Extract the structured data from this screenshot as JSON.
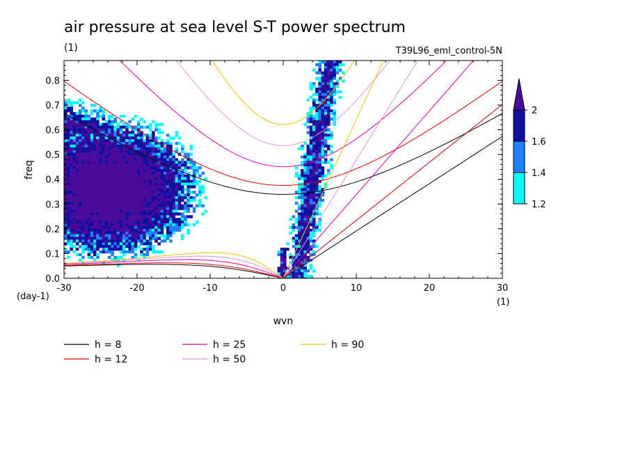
{
  "chart_data": {
    "type": "heatmap",
    "title": "air pressure at sea level S-T power spectrum",
    "subtitle_left": "(1)",
    "subtitle_right": "T39L96_eml_control-5N",
    "xlabel": "wvn",
    "ylabel": "freq",
    "x_unit": "(1)",
    "y_unit": "(day-1)",
    "xlim": [
      -30,
      30
    ],
    "ylim": [
      0,
      0.88
    ],
    "xticks": [
      "-30",
      "-20",
      "-10",
      "0",
      "10",
      "20",
      "30"
    ],
    "xtick_values": [
      -30,
      -20,
      -10,
      0,
      10,
      20,
      30
    ],
    "yticks": [
      "0.0",
      "0.1",
      "0.2",
      "0.3",
      "0.4",
      "0.5",
      "0.6",
      "0.7",
      "0.8"
    ],
    "ytick_values": [
      0,
      0.1,
      0.2,
      0.3,
      0.4,
      0.5,
      0.6,
      0.7,
      0.8
    ],
    "grid": false,
    "colorbar": {
      "levels": [
        "1.2",
        "1.4",
        "1.6",
        "2"
      ],
      "level_values": [
        1.2,
        1.4,
        1.6,
        2
      ],
      "colors": [
        "#00ffff",
        "#1f7fff",
        "#1010a0",
        "#4b0c9c"
      ],
      "extends": "max"
    },
    "shaded_regions": [
      {
        "name": "westward-low-wavenumber",
        "x_range": [
          -30,
          -13
        ],
        "y_range": [
          0.15,
          0.62
        ],
        "level": 2
      },
      {
        "name": "kelvin-band",
        "x_range": [
          1,
          9
        ],
        "y_range": [
          0.02,
          0.88
        ],
        "level": 1.6
      },
      {
        "name": "zero-wvn-column",
        "x_range": [
          -1,
          1
        ],
        "y_range": [
          0,
          0.2
        ],
        "level": 2
      }
    ],
    "series": [
      {
        "name": "h =  8",
        "color": "#000000",
        "h": 8
      },
      {
        "name": "h = 12",
        "color": "#e00000",
        "h": 12
      },
      {
        "name": "h = 25",
        "color": "#e000b0",
        "h": 25
      },
      {
        "name": "h = 50",
        "color": "#e090e0",
        "h": 50
      },
      {
        "name": "h = 90",
        "color": "#f0c000",
        "h": 90
      }
    ],
    "legend": [
      {
        "label": "h =  8",
        "color": "#000000"
      },
      {
        "label": "h = 12",
        "color": "#e00000"
      },
      {
        "label": "h = 25",
        "color": "#e000b0"
      },
      {
        "label": "h = 50",
        "color": "#e090e0"
      },
      {
        "label": "h = 90",
        "color": "#f0c000"
      }
    ]
  }
}
